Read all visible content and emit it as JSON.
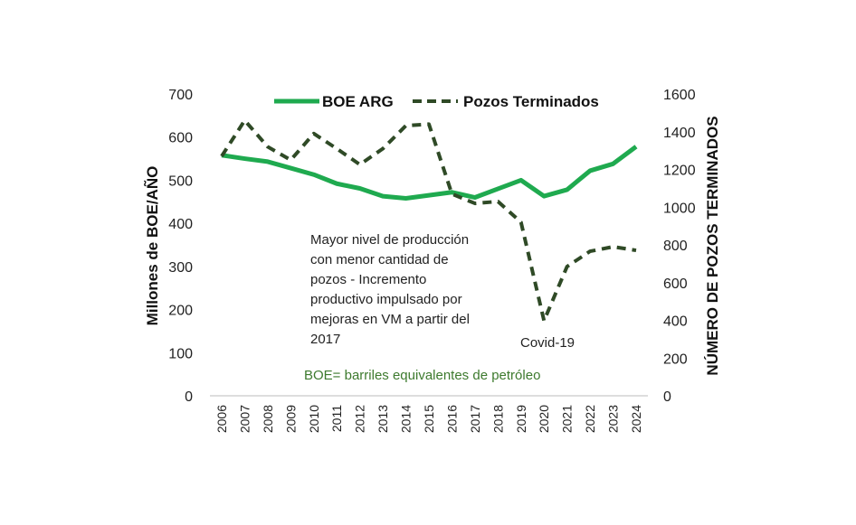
{
  "chart_data": {
    "type": "line",
    "title": "",
    "x": [
      "2006",
      "2007",
      "2008",
      "2009",
      "2010",
      "2011",
      "2012",
      "2013",
      "2014",
      "2015",
      "2016",
      "2017",
      "2018",
      "2019",
      "2020",
      "2021",
      "2022",
      "2023",
      "2024"
    ],
    "series": [
      {
        "name": "BOE ARG",
        "axis": "left",
        "style": "solid",
        "color": "#1faa4f",
        "values": [
          558,
          550,
          543,
          528,
          513,
          492,
          481,
          463,
          458,
          465,
          472,
          460,
          480,
          500,
          463,
          478,
          522,
          538,
          578
        ]
      },
      {
        "name": "Pozos Terminados",
        "axis": "right",
        "style": "dashed",
        "color": "#2f4a26",
        "values": [
          1270,
          1460,
          1320,
          1250,
          1390,
          1310,
          1226,
          1310,
          1432,
          1440,
          1070,
          1020,
          1030,
          920,
          398,
          685,
          766,
          790,
          771
        ]
      }
    ],
    "ylabel": "Millones de BOE/AÑO",
    "y2label": "NÚMERO DE POZOS TERMINADOS",
    "ylim": [
      0,
      700
    ],
    "y2lim": [
      0,
      1600
    ],
    "yticks": [
      "0",
      "100",
      "200",
      "300",
      "400",
      "500",
      "600",
      "700"
    ],
    "y2ticks": [
      "0",
      "200",
      "400",
      "600",
      "800",
      "1000",
      "1200",
      "1400",
      "1600"
    ],
    "legend_position": "top",
    "annotations": {
      "main_lines": [
        "Mayor nivel de producción",
        "con menor cantidad de",
        "pozos - Incremento",
        "productivo impulsado por",
        "mejoras en VM a partir del",
        "2017"
      ],
      "covid": "Covid-19",
      "note": "BOE= barriles equivalentes de petróleo"
    },
    "grid": false
  }
}
